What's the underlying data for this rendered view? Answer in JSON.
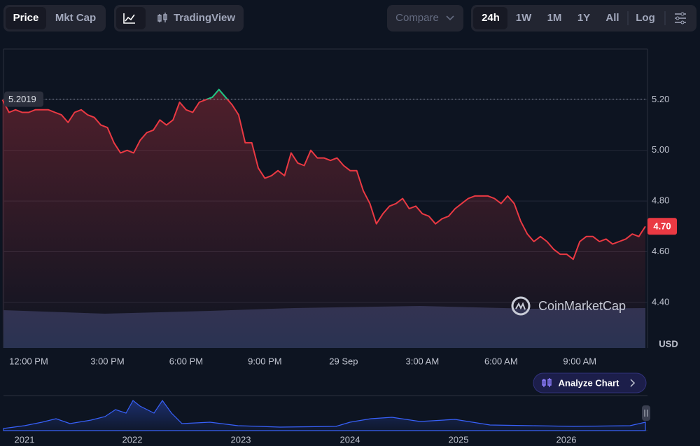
{
  "toolbar": {
    "price": "Price",
    "mkt_cap": "Mkt Cap",
    "tradingview": "TradingView",
    "compare": "Compare",
    "ranges": [
      "24h",
      "1W",
      "1M",
      "1Y",
      "All"
    ],
    "log": "Log"
  },
  "watermark": "CoinMarketCap",
  "analyze": "Analyze Chart",
  "navigator": {
    "years": [
      "2021",
      "2022",
      "2023",
      "2024",
      "2025",
      "2026"
    ]
  },
  "chart_data": {
    "type": "line",
    "color": "#ea3943",
    "above_color": "#16c784",
    "currency": "USD",
    "categories": [
      null,
      null,
      null,
      null,
      "12:00 PM",
      null,
      null,
      null,
      null,
      null,
      null,
      null,
      null,
      null,
      null,
      null,
      "3:00 PM",
      null,
      null,
      null,
      null,
      null,
      null,
      null,
      null,
      null,
      null,
      null,
      "6:00 PM",
      null,
      null,
      null,
      null,
      null,
      null,
      null,
      null,
      null,
      null,
      null,
      "9:00 PM",
      null,
      null,
      null,
      null,
      null,
      null,
      null,
      null,
      null,
      null,
      null,
      "29 Sep",
      null,
      null,
      null,
      null,
      null,
      null,
      null,
      null,
      null,
      null,
      null,
      "3:00 AM",
      null,
      null,
      null,
      null,
      null,
      null,
      null,
      null,
      null,
      null,
      null,
      "6:00 AM",
      null,
      null,
      null,
      null,
      null,
      null,
      null,
      null,
      null,
      null,
      null,
      "9:00 AM",
      null,
      null,
      null,
      null,
      null,
      null,
      null,
      null,
      null,
      null
    ],
    "values": [
      5.2,
      5.15,
      5.16,
      5.15,
      5.15,
      5.16,
      5.16,
      5.16,
      5.15,
      5.14,
      5.11,
      5.15,
      5.16,
      5.14,
      5.13,
      5.1,
      5.09,
      5.03,
      4.99,
      5.0,
      4.99,
      5.04,
      5.07,
      5.08,
      5.12,
      5.1,
      5.12,
      5.19,
      5.16,
      5.15,
      5.19,
      5.2,
      5.21,
      5.24,
      5.21,
      5.18,
      5.14,
      5.03,
      5.03,
      4.93,
      4.89,
      4.9,
      4.92,
      4.9,
      4.99,
      4.95,
      4.94,
      5.0,
      4.97,
      4.97,
      4.96,
      4.97,
      4.94,
      4.92,
      4.92,
      4.84,
      4.79,
      4.71,
      4.75,
      4.78,
      4.79,
      4.81,
      4.77,
      4.78,
      4.75,
      4.74,
      4.71,
      4.73,
      4.74,
      4.77,
      4.79,
      4.81,
      4.82,
      4.82,
      4.82,
      4.81,
      4.79,
      4.82,
      4.79,
      4.72,
      4.67,
      4.64,
      4.66,
      4.64,
      4.61,
      4.59,
      4.59,
      4.57,
      4.64,
      4.66,
      4.66,
      4.64,
      4.65,
      4.63,
      4.64,
      4.65,
      4.67,
      4.66,
      4.7
    ],
    "reference_line": 5.2019,
    "last_price": {
      "value": 4.7,
      "label": "4.70"
    },
    "ylim": [
      4.22,
      5.4
    ],
    "yticks": [
      {
        "value": 4.4,
        "label": "4.40"
      },
      {
        "value": 4.6,
        "label": "4.60"
      },
      {
        "value": 4.8,
        "label": "4.80"
      },
      {
        "value": 5,
        "label": "5.00"
      },
      {
        "value": 5.2,
        "label": "5.20"
      }
    ],
    "grid": true
  }
}
